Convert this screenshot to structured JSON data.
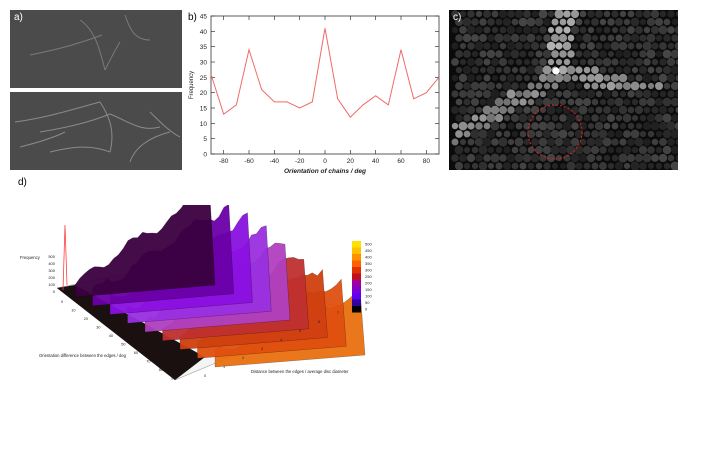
{
  "labels": {
    "a": "a)",
    "b": "b)",
    "c": "c)",
    "d": "d)"
  },
  "chart_data": [
    {
      "type": "line",
      "panel": "b",
      "title": "",
      "xlabel": "Orientation of chains / deg",
      "ylabel": "Frequency",
      "xlim": [
        -90,
        90
      ],
      "ylim": [
        0,
        45
      ],
      "x_ticks": [
        "-80",
        "-60",
        "-40",
        "-20",
        "0",
        "20",
        "40",
        "60",
        "80"
      ],
      "y_ticks": [
        "0",
        "5",
        "10",
        "15",
        "20",
        "25",
        "30",
        "35",
        "40",
        "45"
      ],
      "line_color": "#f06a6a",
      "series": [
        {
          "x": [
            -90,
            -80,
            -70,
            -60,
            -50,
            -40,
            -30,
            -20,
            -10,
            0,
            10,
            20,
            30,
            40,
            50,
            60,
            70,
            80,
            90
          ],
          "values": [
            26,
            13,
            16,
            34,
            21,
            17,
            17,
            15,
            17,
            41,
            18,
            12,
            16,
            19,
            16,
            34,
            18,
            20,
            25
          ]
        }
      ]
    },
    {
      "type": "surface3d",
      "panel": "d",
      "xlabel": "Distance between the edges / average disc diameter",
      "ylabel": "Orientation difference between the edges / deg",
      "zlabel": "Frequency",
      "z_ticks": [
        "0",
        "100",
        "200",
        "300",
        "400",
        "500"
      ],
      "x_ticks": [
        "0",
        "1",
        "2",
        "3",
        "4",
        "5",
        "6",
        "7",
        "8"
      ],
      "y_ticks": [
        "0",
        "10",
        "20",
        "30",
        "40",
        "50",
        "60",
        "70",
        "80",
        "90"
      ],
      "colorbar_ticks": [
        "500",
        "450",
        "400",
        "350",
        "300",
        "250",
        "200",
        "150",
        "100",
        "50",
        "0"
      ]
    }
  ]
}
